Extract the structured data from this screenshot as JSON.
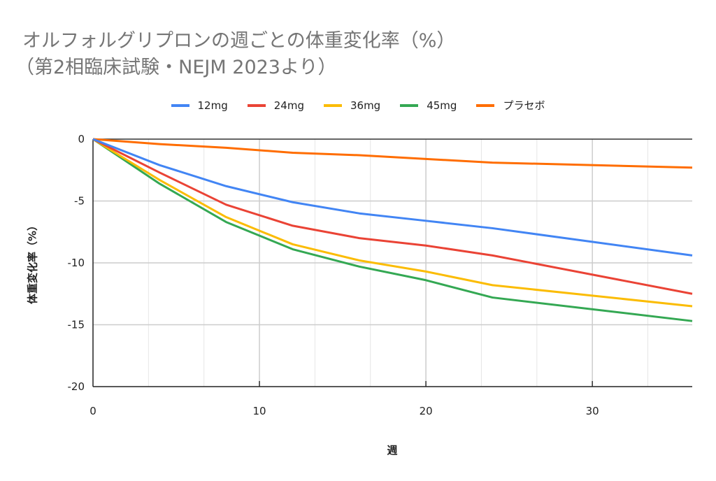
{
  "chart_data": {
    "type": "line",
    "title": "オルフォルグリプロンの週ごとの体重変化率（%）",
    "subtitle": "（第2相臨床試験・NEJM 2023より）",
    "xlabel": "週",
    "ylabel": "体重変化率（%）",
    "xlim": [
      0,
      36
    ],
    "ylim": [
      -20,
      0
    ],
    "x_ticks": [
      "0",
      "10",
      "20",
      "30"
    ],
    "y_ticks": [
      "0",
      "-5",
      "-10",
      "-15",
      "-20"
    ],
    "grid": true,
    "legend_position": "top",
    "x": [
      0,
      4,
      8,
      12,
      16,
      20,
      24,
      36
    ],
    "series": [
      {
        "name": "12mg",
        "color": "#4285f4",
        "values": [
          0,
          -2.1,
          -3.8,
          -5.1,
          -6.0,
          -6.6,
          -7.2,
          -9.4
        ]
      },
      {
        "name": "24mg",
        "color": "#ea4335",
        "values": [
          0,
          -2.7,
          -5.3,
          -7.0,
          -8.0,
          -8.6,
          -9.4,
          -12.5
        ]
      },
      {
        "name": "36mg",
        "color": "#fbbc04",
        "values": [
          0,
          -3.3,
          -6.3,
          -8.5,
          -9.8,
          -10.7,
          -11.8,
          -13.5
        ]
      },
      {
        "name": "45mg",
        "color": "#34a853",
        "values": [
          0,
          -3.6,
          -6.7,
          -8.9,
          -10.3,
          -11.4,
          -12.8,
          -14.7
        ]
      },
      {
        "name": "プラセボ",
        "color": "#ff6d01",
        "values": [
          0,
          -0.4,
          -0.7,
          -1.1,
          -1.3,
          -1.6,
          -1.9,
          -2.3
        ]
      }
    ]
  }
}
